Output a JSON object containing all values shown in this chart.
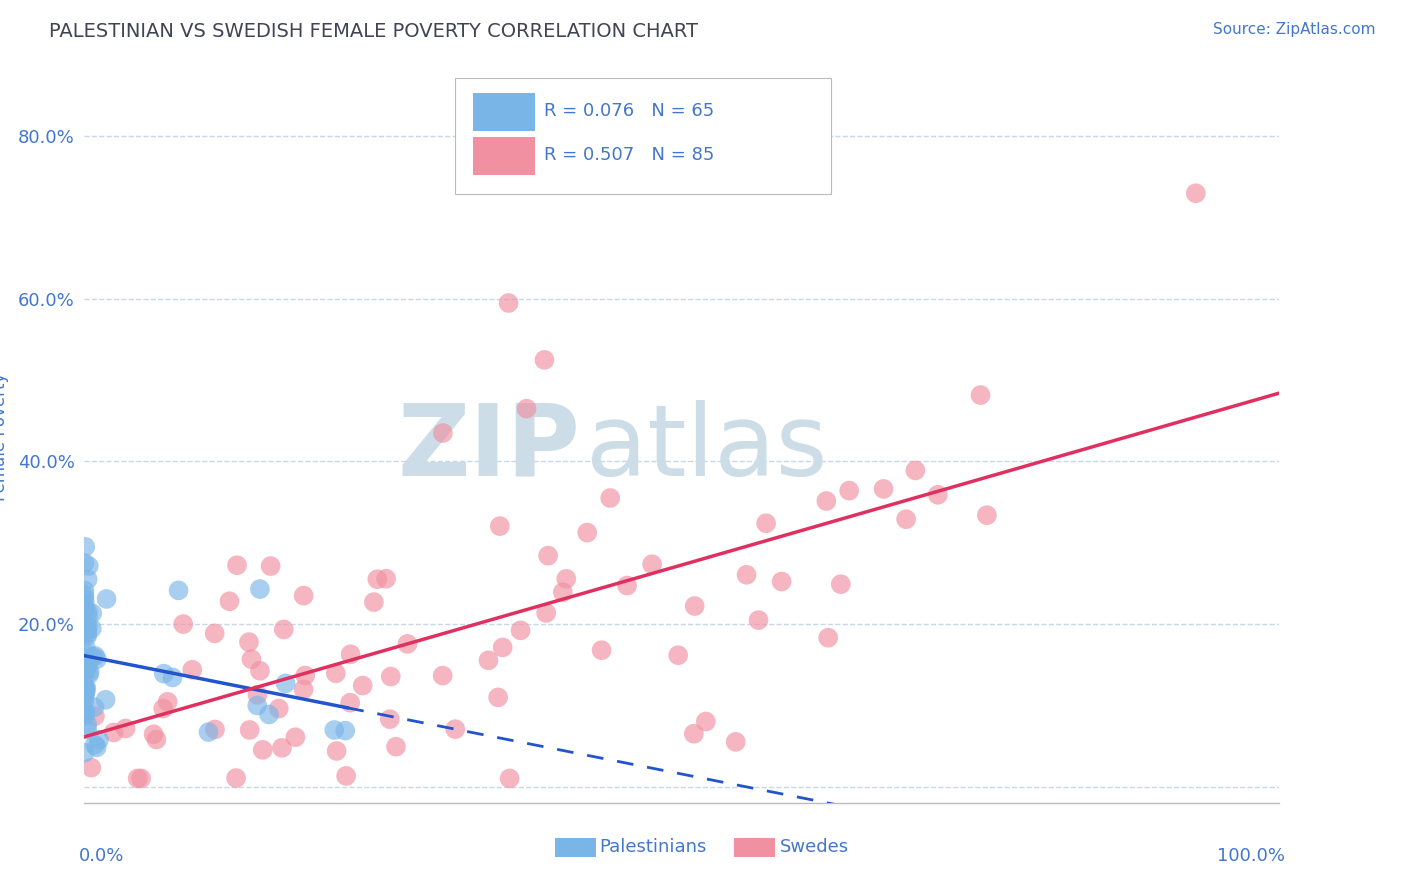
{
  "title": "PALESTINIAN VS SWEDISH FEMALE POVERTY CORRELATION CHART",
  "source": "Source: ZipAtlas.com",
  "ylabel": "Female Poverty",
  "watermark_zip": "ZIP",
  "watermark_atlas": "atlas",
  "legend_pal_r": "R = 0.076",
  "legend_pal_n": "N = 65",
  "legend_swe_r": "R = 0.507",
  "legend_swe_n": "N = 85",
  "ytick_vals": [
    0.0,
    0.2,
    0.4,
    0.6,
    0.8
  ],
  "ytick_labels": [
    "",
    "20.0%",
    "40.0%",
    "60.0%",
    "80.0%"
  ],
  "xlim": [
    0.0,
    1.0
  ],
  "ylim": [
    -0.02,
    0.88
  ],
  "palestinian_color": "#7ab5e8",
  "swedish_color": "#f090a0",
  "pal_line_color": "#2255cc",
  "swe_line_color": "#e03060",
  "title_color": "#404455",
  "axis_label_color": "#4477cc",
  "grid_color": "#c8d8e8",
  "bg_color": "#ffffff",
  "watermark_color": "#ccdde8"
}
